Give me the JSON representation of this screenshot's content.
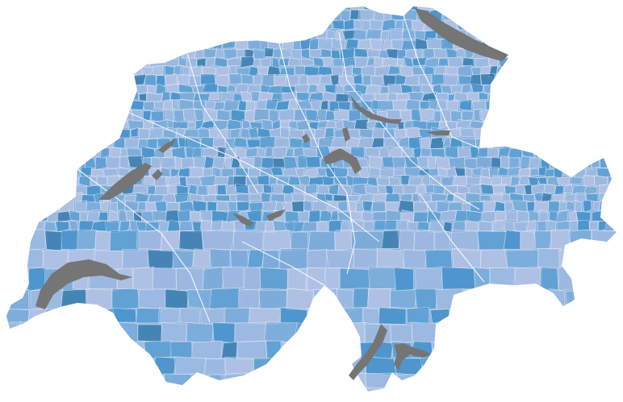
{
  "map": {
    "type": "choropleth",
    "palette": [
      "#c9cdea",
      "#a7bde3",
      "#6fa8d8",
      "#3f93cc",
      "#1a7fbf",
      "#0a5f96"
    ],
    "lake_color": "#757575",
    "border_color": "#ffffff",
    "background": "#ffffff"
  }
}
